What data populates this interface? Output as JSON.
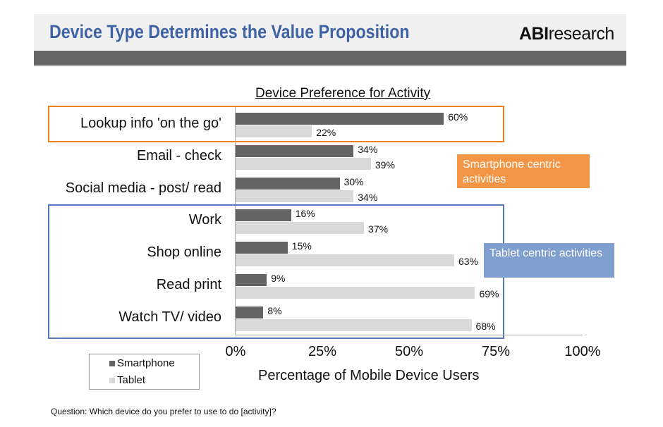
{
  "header": {
    "title": "Device Type Determines the Value Proposition",
    "logo_bold": "ABI",
    "logo_rest": "research"
  },
  "annotations": {
    "smartphone": "Smartphone centric activities",
    "tablet": "Tablet centric activities",
    "smartphone_color": "#f39545",
    "tablet_color": "#7f9fcf"
  },
  "footnote": "Question: Which device do you prefer to use to do [activity]?",
  "chart_data": {
    "type": "bar",
    "orientation": "horizontal",
    "title": "Device Preference for Activity",
    "xlabel": "Percentage of Mobile Device Users",
    "ylabel": "",
    "xlim": [
      0,
      100
    ],
    "ticks": [
      "0%",
      "25%",
      "50%",
      "75%",
      "100%"
    ],
    "categories": [
      "Lookup info 'on the go'",
      "Email - check",
      "Social media - post/ read",
      "Work",
      "Shop online",
      "Read print",
      "Watch TV/ video"
    ],
    "series": [
      {
        "name": "Smartphone",
        "color": "#646464",
        "values": [
          60,
          34,
          30,
          16,
          15,
          9,
          8
        ]
      },
      {
        "name": "Tablet",
        "color": "#d9d9d9",
        "values": [
          22,
          39,
          34,
          37,
          63,
          69,
          68
        ]
      }
    ],
    "legend": "bottom-left"
  }
}
